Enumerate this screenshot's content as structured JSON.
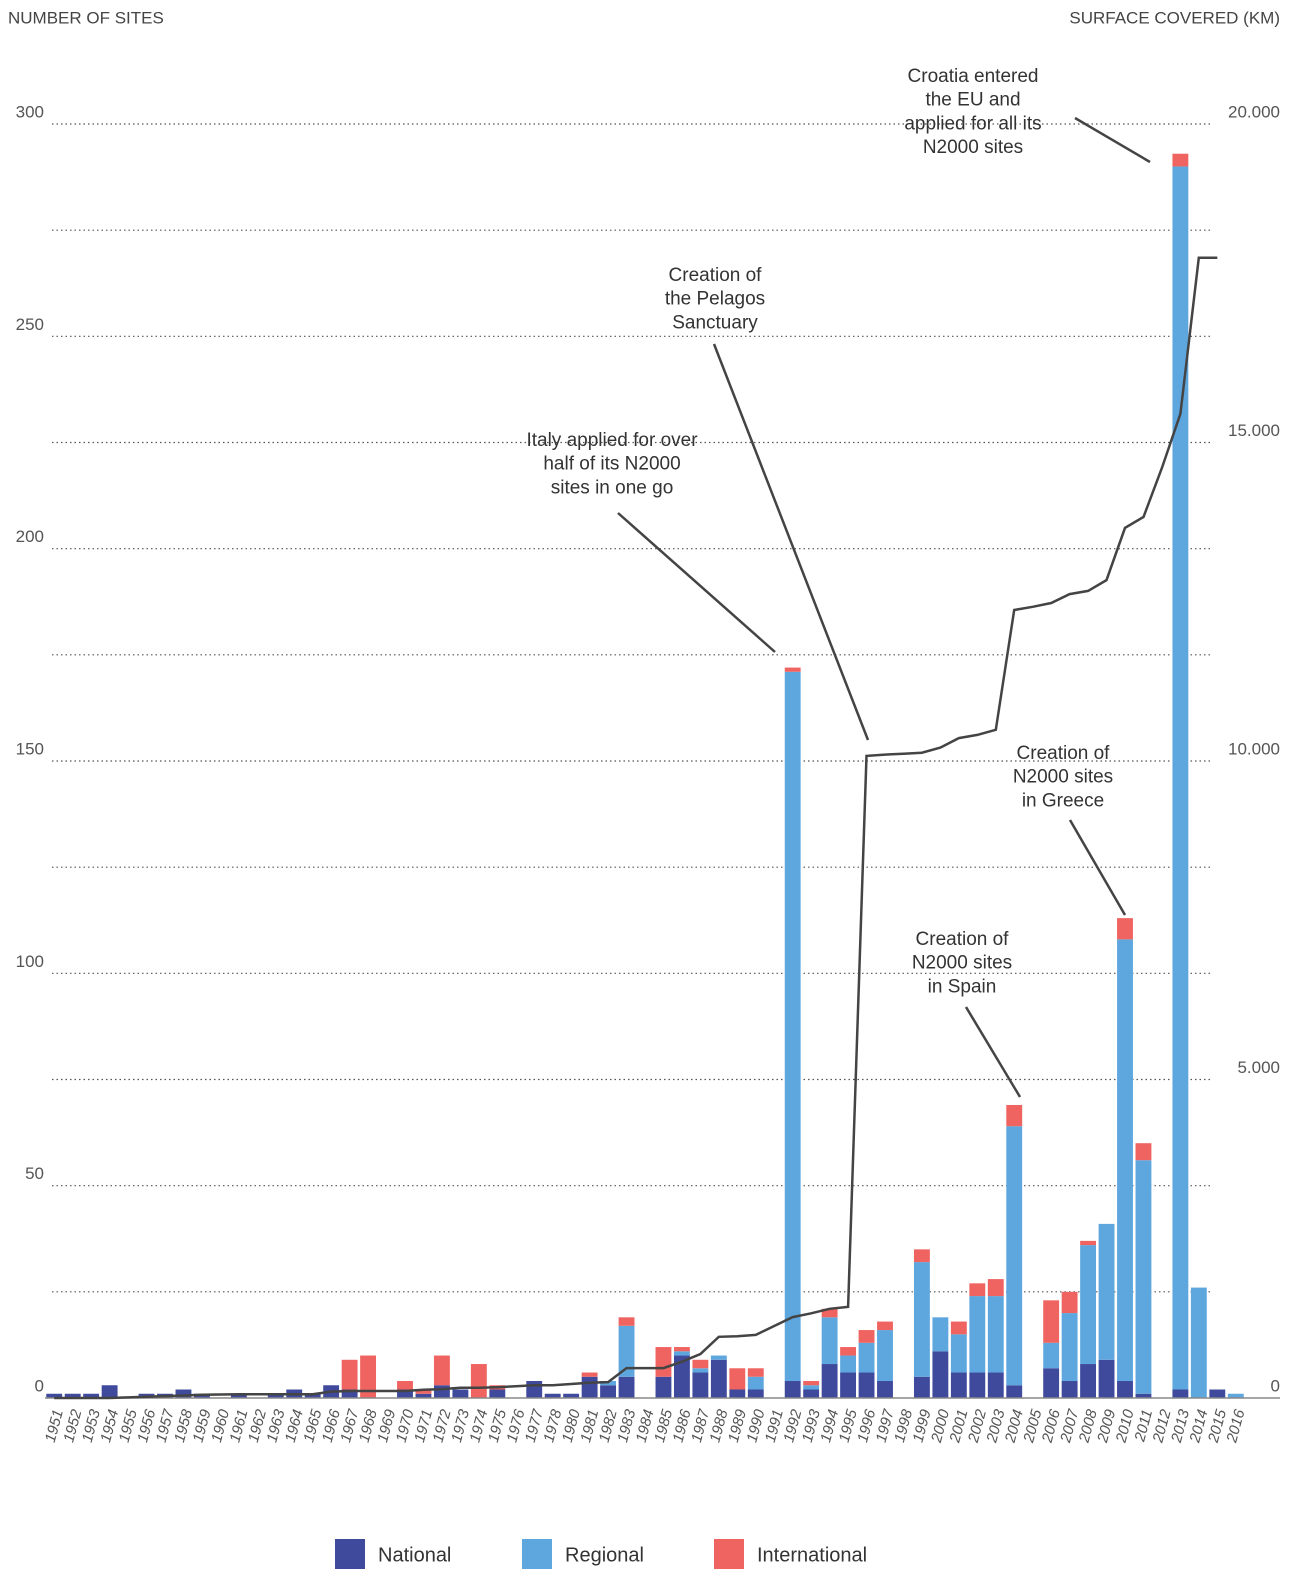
{
  "chart_data": {
    "type": "bar",
    "stacked": true,
    "y_axis_title": "NUMBER OF SITES",
    "y2_axis_title": "SURFACE COVERED (KM)",
    "categories": [
      "1951",
      "1952",
      "1953",
      "1954",
      "1955",
      "1956",
      "1957",
      "1958",
      "1959",
      "1960",
      "1961",
      "1962",
      "1963",
      "1964",
      "1965",
      "1966",
      "1967",
      "1968",
      "1969",
      "1970",
      "1971",
      "1972",
      "1973",
      "1974",
      "1975",
      "1976",
      "1977",
      "1978",
      "1980",
      "1981",
      "1982",
      "1983",
      "1984",
      "1985",
      "1986",
      "1987",
      "1988",
      "1989",
      "1990",
      "1991",
      "1992",
      "1993",
      "1994",
      "1995",
      "1996",
      "1997",
      "1998",
      "1999",
      "2000",
      "2001",
      "2002",
      "2003",
      "2004",
      "2005",
      "2006",
      "2007",
      "2008",
      "2009",
      "2010",
      "2011",
      "2012",
      "2013",
      "2014",
      "2015",
      "2016"
    ],
    "series": [
      {
        "name": "National",
        "color": "#3f4a9c",
        "values": [
          1,
          1,
          1,
          3,
          0,
          1,
          1,
          2,
          1,
          0,
          1,
          0,
          1,
          2,
          1,
          3,
          2,
          0,
          0,
          2,
          1,
          3,
          2,
          0,
          2,
          0,
          4,
          1,
          1,
          5,
          3,
          5,
          0,
          5,
          10,
          6,
          9,
          2,
          2,
          0,
          4,
          2,
          8,
          6,
          6,
          4,
          0,
          5,
          11,
          6,
          6,
          6,
          3,
          0,
          7,
          4,
          8,
          9,
          4,
          1,
          0,
          2,
          0,
          2,
          0
        ]
      },
      {
        "name": "Regional",
        "color": "#5ea7de",
        "values": [
          0,
          0,
          0,
          0,
          0,
          0,
          0,
          0,
          0,
          0,
          0,
          0,
          0,
          0,
          0,
          0,
          0,
          0,
          0,
          0,
          0,
          0,
          0,
          0,
          0,
          0,
          0,
          0,
          0,
          0,
          1,
          12,
          0,
          0,
          1,
          1,
          1,
          0,
          3,
          0,
          167,
          1,
          11,
          4,
          7,
          12,
          0,
          27,
          8,
          9,
          18,
          18,
          61,
          0,
          6,
          16,
          28,
          32,
          104,
          55,
          0,
          288,
          26,
          0,
          1
        ]
      },
      {
        "name": "International",
        "color": "#ef6461",
        "values": [
          0,
          0,
          0,
          0,
          0,
          0,
          0,
          0,
          0,
          0,
          0,
          0,
          0,
          0,
          0,
          0,
          7,
          10,
          0,
          2,
          1,
          7,
          0,
          8,
          1,
          0,
          0,
          0,
          0,
          1,
          0,
          2,
          0,
          7,
          1,
          2,
          0,
          5,
          2,
          0,
          1,
          1,
          2,
          2,
          3,
          2,
          0,
          3,
          0,
          3,
          3,
          4,
          5,
          0,
          10,
          5,
          1,
          0,
          5,
          4,
          0,
          3,
          0,
          0,
          0
        ]
      },
      {
        "kind": "line",
        "axis": "y2",
        "color": "#444444",
        "values": [
          0,
          0,
          0,
          0,
          10,
          20,
          30,
          40,
          50,
          55,
          60,
          60,
          60,
          60,
          60,
          100,
          110,
          110,
          110,
          110,
          130,
          140,
          160,
          160,
          170,
          185,
          200,
          200,
          220,
          240,
          250,
          470,
          470,
          470,
          570,
          690,
          960,
          970,
          990,
          1130,
          1270,
          1330,
          1400,
          1430,
          10080,
          10100,
          10115,
          10130,
          10210,
          10360,
          10410,
          10490,
          12370,
          12420,
          12480,
          12620,
          12670,
          12840,
          13660,
          13830,
          14600,
          15450,
          17900,
          17900,
          null
        ]
      }
    ],
    "ylim": [
      0,
      300
    ],
    "yticks": [
      0,
      50,
      100,
      150,
      200,
      250,
      300
    ],
    "ygrid_minor": [
      25,
      75,
      125,
      175,
      225,
      275
    ],
    "y2lim": [
      0,
      20000
    ],
    "y2ticks": [
      0,
      {
        "value": 5000,
        "label": "5.000"
      },
      {
        "value": 10000,
        "label": "10.000"
      },
      {
        "value": 15000,
        "label": "15.000"
      },
      {
        "value": 20000,
        "label": "20.000"
      }
    ],
    "grid": true,
    "annotations": [
      {
        "lines": [
          "Croatia entered",
          "the EU and",
          "applied for all its",
          "N2000 sites"
        ]
      },
      {
        "lines": [
          "Creation of",
          "the Pelagos",
          "Sanctuary"
        ]
      },
      {
        "lines": [
          "Italy applied for over",
          "half of its N2000",
          "sites in one go"
        ]
      },
      {
        "lines": [
          "Creation of",
          "N2000 sites",
          "in Greece"
        ]
      },
      {
        "lines": [
          "Creation of",
          "N2000 sites",
          "in Spain"
        ]
      }
    ]
  }
}
